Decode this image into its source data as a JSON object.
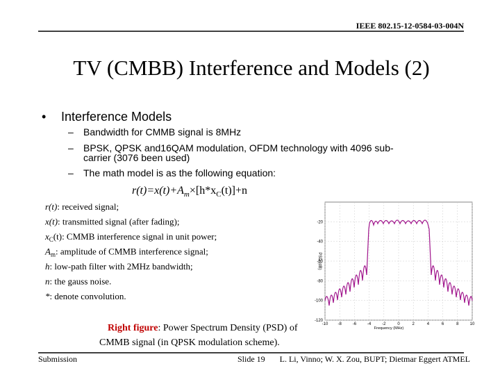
{
  "header": {
    "doc_id": "IEEE 802.15-12-0584-03-004N"
  },
  "title": "TV (CMBB) Interference and Models (2)",
  "bullet": {
    "text": "Interference Models",
    "subitems": [
      "Bandwidth for CMMB signal is 8MHz",
      "BPSK, QPSK and16QAM modulation, OFDM technology with 4096 sub-",
      "carrier (3076 been used)",
      "The math model is as the following equation:"
    ]
  },
  "equation": {
    "part1": "r(t)=x(t)+A",
    "sub1": "m",
    "part2": "×[h*x",
    "sub2": "C",
    "part3": "(t)]+n"
  },
  "definitions": [
    {
      "term": "r(t)",
      "sub": "",
      "text": ": received signal;"
    },
    {
      "term": "x(t)",
      "sub": "",
      "text": ": transmitted signal (after fading);"
    },
    {
      "term": "x",
      "sub": "C",
      "text": "(t): CMMB interference signal in unit power;"
    },
    {
      "term": "A",
      "sub": "m",
      "text": ": amplitude of CMMB interference signal;"
    },
    {
      "term": "h",
      "sub": "",
      "text": ": low-path filter with 2MHz bandwidth;"
    },
    {
      "term": "n",
      "sub": "",
      "text": ": the gauss noise."
    },
    {
      "term": "*",
      "sub": "",
      "text": ": denote convolution."
    }
  ],
  "caption": {
    "label": "Right figure",
    "line1": ": Power Spectrum Density (PSD) of",
    "line2": "CMMB signal (in QPSK modulation scheme)."
  },
  "figure": {
    "ylabel": "PSD (dB)",
    "xlabel": "Frequency (MHz)",
    "yticks": [
      -20,
      -40,
      -60,
      -80,
      -100,
      -120
    ],
    "xticks": [
      -10,
      -8,
      -6,
      -4,
      -2,
      0,
      2,
      4,
      6,
      8,
      10
    ]
  },
  "footer": {
    "left": "Submission",
    "center": "Slide 19",
    "right": "L. Li, Vinno; W. X. Zou, BUPT; Dietmar Eggert ATMEL"
  }
}
